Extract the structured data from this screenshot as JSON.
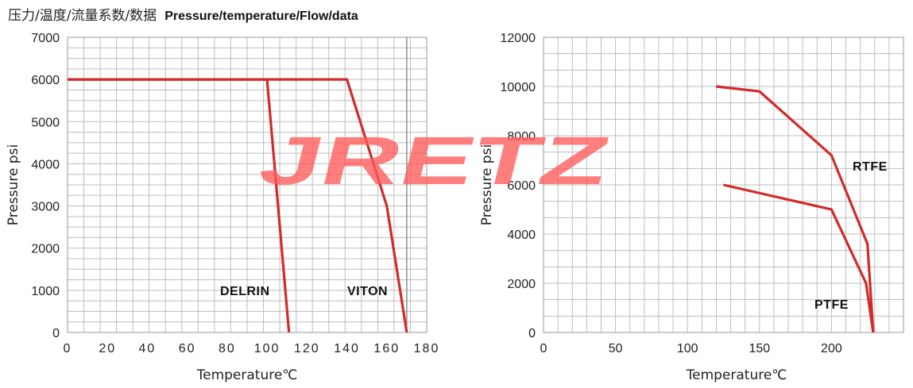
{
  "header": {
    "cn": "压力/温度/流量系数/数据",
    "en": "Pressure/temperature/Flow/data"
  },
  "watermark": {
    "text": "JRETZ",
    "color": "#ff5a5a"
  },
  "colors": {
    "line": "#d22a2a",
    "grid": "#bdbdbd"
  },
  "chart_data": [
    {
      "type": "line",
      "xlabel": "Temperature℃",
      "ylabel": "Pressure psi",
      "xlim": [
        0,
        180
      ],
      "ylim": [
        0,
        7000
      ],
      "xticks": [
        0,
        20,
        40,
        60,
        80,
        100,
        120,
        140,
        160,
        180
      ],
      "yticks": [
        0,
        1000,
        2000,
        3000,
        4000,
        5000,
        6000,
        7000
      ],
      "grid": true,
      "series": [
        {
          "name": "DELRIN",
          "x": [
            0,
            100,
            111
          ],
          "y": [
            6000,
            6000,
            0
          ]
        },
        {
          "name": "VITON",
          "x": [
            0,
            140,
            160,
            170
          ],
          "y": [
            6000,
            6000,
            3000,
            0
          ]
        }
      ]
    },
    {
      "type": "line",
      "xlabel": "Temperature℃",
      "ylabel": "Pressure psi",
      "xlim": [
        0,
        250
      ],
      "ylim": [
        0,
        12000
      ],
      "xticks": [
        0,
        50,
        100,
        150,
        200
      ],
      "yticks": [
        0,
        2000,
        4000,
        6000,
        8000,
        10000,
        12000
      ],
      "grid": true,
      "series": [
        {
          "name": "RTFE",
          "x": [
            120,
            150,
            200,
            225,
            229
          ],
          "y": [
            10000,
            9800,
            7200,
            3600,
            0
          ]
        },
        {
          "name": "PTFE",
          "x": [
            125,
            200,
            224,
            229
          ],
          "y": [
            6000,
            5000,
            2000,
            0
          ]
        }
      ]
    }
  ]
}
